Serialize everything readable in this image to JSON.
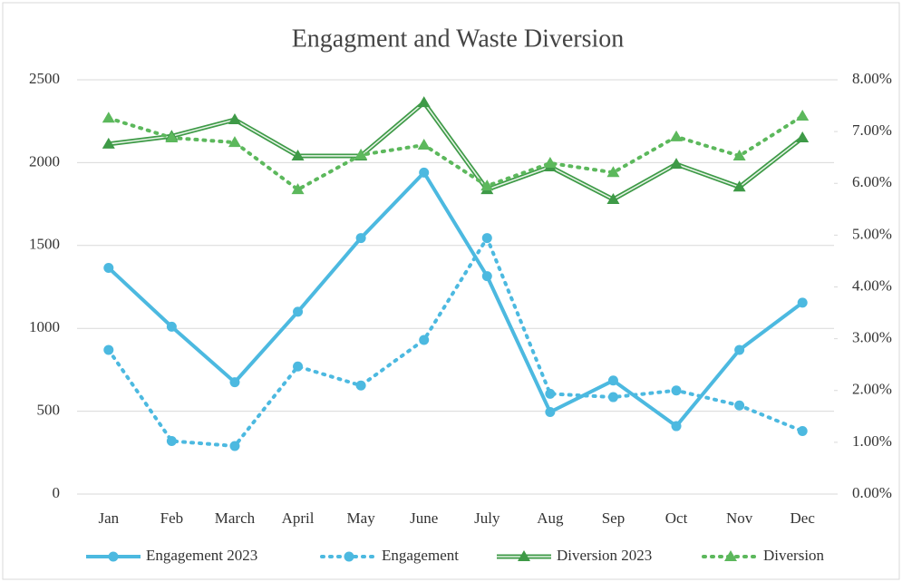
{
  "chart_data": {
    "type": "line",
    "title": "Engagment and Waste Diversion",
    "categories": [
      "Jan",
      "Feb",
      "March",
      "April",
      "May",
      "June",
      "July",
      "Aug",
      "Sep",
      "Oct",
      "Nov",
      "Dec"
    ],
    "ylim": [
      0,
      2500
    ],
    "yticks": [
      0,
      500,
      1000,
      1500,
      2000,
      2500
    ],
    "y2lim": [
      0,
      8
    ],
    "y2ticks": [
      {
        "value": 0,
        "label": "0.00%"
      },
      {
        "value": 1,
        "label": "1.00%"
      },
      {
        "value": 2,
        "label": "2.00%"
      },
      {
        "value": 3,
        "label": "3.00%"
      },
      {
        "value": 4,
        "label": "4.00%"
      },
      {
        "value": 5,
        "label": "5.00%"
      },
      {
        "value": 6,
        "label": "6.00%"
      },
      {
        "value": 7,
        "label": "7.00%"
      },
      {
        "value": 8,
        "label": "8.00%"
      }
    ],
    "grid": true,
    "legend": "bottom",
    "series": [
      {
        "name": "Engagement 2023",
        "color": "#4cb9e0",
        "line_style": "solid",
        "marker": "circle",
        "values": [
          1365,
          1010,
          675,
          1100,
          1545,
          1940,
          1315,
          495,
          685,
          410,
          870,
          1155
        ]
      },
      {
        "name": "Engagement",
        "color": "#4cb9e0",
        "line_style": "dotted",
        "marker": "circle",
        "values": [
          870,
          320,
          290,
          770,
          655,
          930,
          1545,
          605,
          585,
          625,
          535,
          380
        ]
      },
      {
        "name": "Diversion 2023",
        "color": "#3e9a47",
        "line_style": "double",
        "marker": "triangle",
        "axis": "y2",
        "values": [
          6.76,
          6.91,
          7.23,
          6.53,
          6.53,
          7.56,
          5.88,
          6.32,
          5.69,
          6.37,
          5.93,
          6.88
        ]
      },
      {
        "name": "Diversion",
        "color": "#5cb85c",
        "line_style": "dotted",
        "marker": "triangle",
        "axis": "y2",
        "values": [
          7.26,
          6.88,
          6.79,
          5.88,
          6.55,
          6.74,
          5.95,
          6.39,
          6.21,
          6.9,
          6.53,
          7.3
        ]
      }
    ]
  }
}
